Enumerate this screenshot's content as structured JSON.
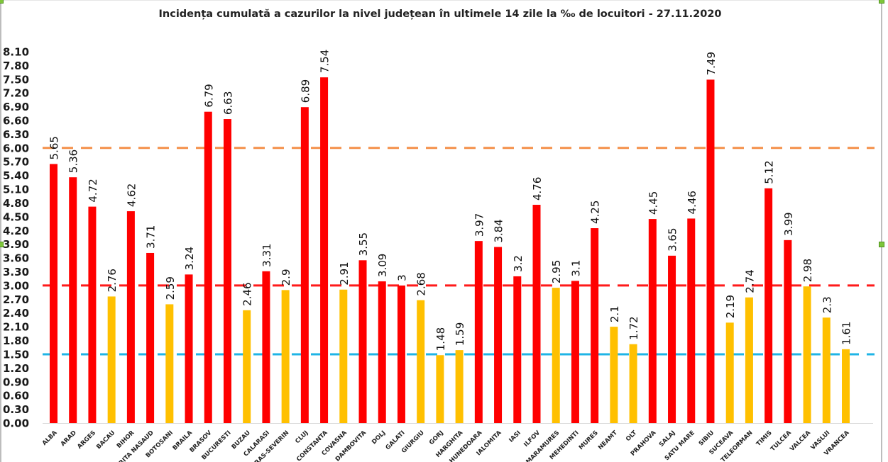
{
  "chart_data": {
    "type": "bar",
    "title": "Incidența cumulată a cazurilor la nivel județean în ultimele 14 zile la ‰ de locuitori - 27.11.2020",
    "xlabel": "",
    "ylabel": "",
    "ylim": [
      0,
      8.1
    ],
    "yticks": [
      "0.00",
      "0.30",
      "0.60",
      "0.90",
      "1.20",
      "1.50",
      "1.80",
      "2.10",
      "2.40",
      "2.70",
      "3.00",
      "3.30",
      "3.60",
      "3.90",
      "4.20",
      "4.50",
      "4.80",
      "5.10",
      "5.40",
      "5.70",
      "6.00",
      "6.30",
      "6.60",
      "6.90",
      "7.20",
      "7.50",
      "7.80",
      "8.10"
    ],
    "categories": [
      "ALBA",
      "ARAD",
      "ARGES",
      "BACAU",
      "BIHOR",
      "BISTRITA NASAUD",
      "BOTOSANI",
      "BRAILA",
      "BRASOV",
      "BUCURESTI",
      "BUZAU",
      "CALARASI",
      "CARAS-SEVERIN",
      "CLUJ",
      "CONSTANTA",
      "COVASNA",
      "DAMBOVITA",
      "DOLJ",
      "GALATI",
      "GIURGIU",
      "GORJ",
      "HARGHITA",
      "HUNEDOARA",
      "IALOMITA",
      "IASI",
      "ILFOV",
      "MARAMURES",
      "MEHEDINTI",
      "MURES",
      "NEAMT",
      "OLT",
      "PRAHOVA",
      "SALAJ",
      "SATU MARE",
      "SIBIU",
      "SUCEAVA",
      "TELEORMAN",
      "TIMIS",
      "TULCEA",
      "VALCEA",
      "VASLUI",
      "VRANCEA"
    ],
    "values": [
      5.65,
      5.36,
      4.72,
      2.76,
      4.62,
      3.71,
      2.59,
      3.24,
      6.79,
      6.63,
      2.46,
      3.31,
      2.9,
      6.89,
      7.54,
      2.91,
      3.55,
      3.09,
      3,
      2.68,
      1.48,
      1.59,
      3.97,
      3.84,
      3.2,
      4.76,
      2.95,
      3.1,
      4.25,
      2.1,
      1.72,
      4.45,
      3.65,
      4.46,
      7.49,
      2.19,
      2.74,
      5.12,
      3.99,
      2.98,
      2.3,
      1.61
    ],
    "data_labels": [
      "5.65",
      "5.36",
      "4.72",
      "2.76",
      "4.62",
      "3.71",
      "2.59",
      "3.24",
      "6.79",
      "6.63",
      "2.46",
      "3.31",
      "2.9",
      "6.89",
      "7.54",
      "2.91",
      "3.55",
      "3.09",
      "3",
      "2.68",
      "1.48",
      "1.59",
      "3.97",
      "3.84",
      "3.2",
      "4.76",
      "2.95",
      "3.1",
      "4.25",
      "2.1",
      "1.72",
      "4.45",
      "3.65",
      "4.46",
      "7.49",
      "2.19",
      "2.74",
      "5.12",
      "3.99",
      "2.98",
      "2.3",
      "1.61"
    ],
    "bar_colors": {
      "above_3": "#ff0000",
      "below_3": "#ffc000"
    },
    "color_rule_threshold": 3.0,
    "reference_lines": [
      {
        "name": "threshold-6",
        "value": 6.0,
        "color": "#f4904a",
        "style": "dashed"
      },
      {
        "name": "threshold-3",
        "value": 3.0,
        "color": "#ff1a1a",
        "style": "dashed"
      },
      {
        "name": "threshold-1.5",
        "value": 1.5,
        "color": "#1fb4e6",
        "style": "dashed"
      }
    ],
    "grid": false,
    "legend": "none"
  }
}
